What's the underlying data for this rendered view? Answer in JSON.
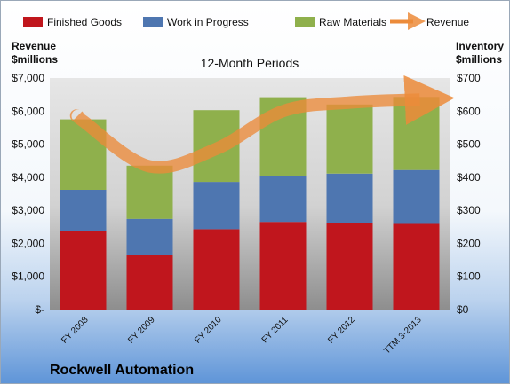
{
  "chart_data": {
    "type": "bar",
    "stacked": true,
    "subtitle": "12-Month Periods",
    "company": "Rockwell Automation",
    "categories": [
      "FY 2008",
      "FY 2009",
      "FY 2010",
      "FY 2011",
      "FY 2012",
      "TTM 3-2013"
    ],
    "series": [
      {
        "name": "Finished Goods",
        "color": "#c0161d",
        "axis": "right",
        "values": [
          237,
          165,
          243,
          265,
          263,
          259
        ]
      },
      {
        "name": "Work in Progress",
        "color": "#4e76b0",
        "axis": "right",
        "values": [
          125,
          109,
          143,
          139,
          148,
          163
        ]
      },
      {
        "name": "Raw Materials",
        "color": "#8fb04c",
        "axis": "right",
        "values": [
          213,
          161,
          217,
          238,
          209,
          221
        ]
      }
    ],
    "line_series": {
      "name": "Revenue",
      "color": "#ec8b3a",
      "axis": "left",
      "values": [
        5700,
        4330,
        4860,
        6000,
        6260,
        6270
      ]
    },
    "left_axis": {
      "title_line1": "Revenue",
      "title_line2": "$millions",
      "ylim": [
        0,
        7000
      ],
      "ticks": [
        "$-",
        "$1,000",
        "$2,000",
        "$3,000",
        "$4,000",
        "$5,000",
        "$6,000",
        "$7,000"
      ]
    },
    "right_axis": {
      "title_line1": "Inventory",
      "title_line2": "$millions",
      "ylim": [
        0,
        700
      ],
      "ticks": [
        "$0",
        "$100",
        "$200",
        "$300",
        "$400",
        "$500",
        "$600",
        "$700"
      ]
    },
    "legend_position": "top"
  }
}
